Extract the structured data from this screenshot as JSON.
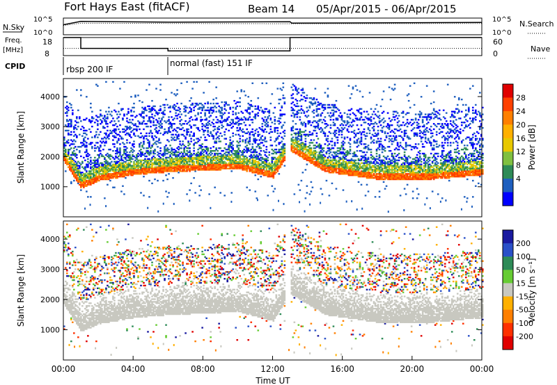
{
  "header": {
    "station": "Fort Hays East (fitACF)",
    "beam": "Beam 14",
    "dates": "05/Apr/2015 - 06/Apr/2015"
  },
  "labels": {
    "nsky": "N.Sky",
    "nsearch": "N.Search",
    "freq_line1": "Freq.",
    "freq_line2": "[MHz]",
    "nave": "Nave",
    "cpid": "CPID",
    "slant_range": "Slant Range [km]",
    "time_ut": "Time UT",
    "power_label": "Power [dB]",
    "velocity_label": "Velocity [m s⁻¹]"
  },
  "axis_ticks": {
    "noise_left": [
      "10^5",
      "10^0"
    ],
    "noise_right": [
      "10^5",
      "10^0"
    ],
    "freq_left": [
      "18",
      "8"
    ],
    "freq_right": [
      "60",
      "0"
    ],
    "range": [
      "1000",
      "2000",
      "3000",
      "4000"
    ],
    "time": [
      "00:00",
      "04:00",
      "08:00",
      "12:00",
      "16:00",
      "20:00",
      "00:00"
    ]
  },
  "cpid_segments": [
    {
      "label": "rbsp 200 IF",
      "start_hour": 0,
      "end_hour": 6
    },
    {
      "label": "normal (fast) 151 IF",
      "start_hour": 6,
      "end_hour": 24
    }
  ],
  "colorscales": {
    "power": {
      "ticks": [
        "28",
        "24",
        "20",
        "16",
        "12",
        "8",
        "4"
      ],
      "colors": [
        "#e00000",
        "#ff4000",
        "#ff7f00",
        "#ffb000",
        "#e8c800",
        "#80c040",
        "#2e8b57",
        "#1e5fbf",
        "#0000ff"
      ]
    },
    "velocity": {
      "ticks": [
        "200",
        "100",
        "50",
        "15",
        "-15",
        "-50",
        "-100",
        "-200"
      ],
      "colors": [
        "#1a1aa0",
        "#2a50c8",
        "#2e8b57",
        "#66cc33",
        "#c8c8c0",
        "#ffb000",
        "#ff7f00",
        "#ff3000",
        "#e00000"
      ]
    }
  },
  "chart_data": [
    {
      "type": "line",
      "title": "N.Sky / N.Search",
      "ylabel": "N.Sky",
      "yscale": "log",
      "ylim": [
        1,
        100000
      ],
      "xlim_hours": [
        0,
        24
      ],
      "series": [
        {
          "name": "N.Sky",
          "x": [
            0,
            1,
            6,
            13,
            13.1,
            24
          ],
          "y": [
            1000,
            10000,
            6000,
            8000,
            3000,
            5000
          ]
        },
        {
          "name": "N.Search",
          "x": [
            0,
            1,
            6,
            13,
            24
          ],
          "y": [
            600,
            3000,
            2500,
            2000,
            2500
          ]
        }
      ]
    },
    {
      "type": "line",
      "title": "Freq. / Nave",
      "ylabel": "Freq. [MHz]",
      "ylim": [
        8,
        18
      ],
      "xlim_hours": [
        0,
        24
      ],
      "series": [
        {
          "name": "Freq.",
          "x": [
            0,
            1,
            1,
            6,
            6,
            13,
            13,
            24
          ],
          "y": [
            18,
            18,
            12,
            12,
            10.6,
            10.6,
            18,
            18
          ]
        },
        {
          "name": "Nave",
          "x": [
            0,
            24
          ],
          "y": [
            12,
            12
          ]
        }
      ]
    },
    {
      "type": "heatmap",
      "title": "Power",
      "xlabel": "Time UT",
      "ylabel": "Slant Range [km]",
      "xlim_hours": [
        0,
        24
      ],
      "ylim": [
        0,
        4600
      ],
      "colorbar_label": "Power [dB]",
      "colorbar_ticks": [
        4,
        8,
        12,
        16,
        20,
        24,
        28
      ],
      "ground_scatter_band_km": [
        [
          0,
          1900
        ],
        [
          1,
          1000
        ],
        [
          2,
          1250
        ],
        [
          4,
          1450
        ],
        [
          6,
          1550
        ],
        [
          8,
          1600
        ],
        [
          10,
          1650
        ],
        [
          12,
          1350
        ],
        [
          13,
          2250
        ],
        [
          15,
          1550
        ],
        [
          18,
          1300
        ],
        [
          21,
          1300
        ],
        [
          24,
          1450
        ]
      ],
      "data_gap_hours": [
        12.7,
        13.0
      ]
    },
    {
      "type": "heatmap",
      "title": "Velocity",
      "xlabel": "Time UT",
      "ylabel": "Slant Range [km]",
      "xlim_hours": [
        0,
        24
      ],
      "ylim": [
        0,
        4600
      ],
      "colorbar_label": "Velocity [m s⁻¹]",
      "colorbar_ticks": [
        -200,
        -100,
        -50,
        -15,
        15,
        50,
        100,
        200
      ],
      "data_gap_hours": [
        12.7,
        13.0
      ]
    }
  ]
}
